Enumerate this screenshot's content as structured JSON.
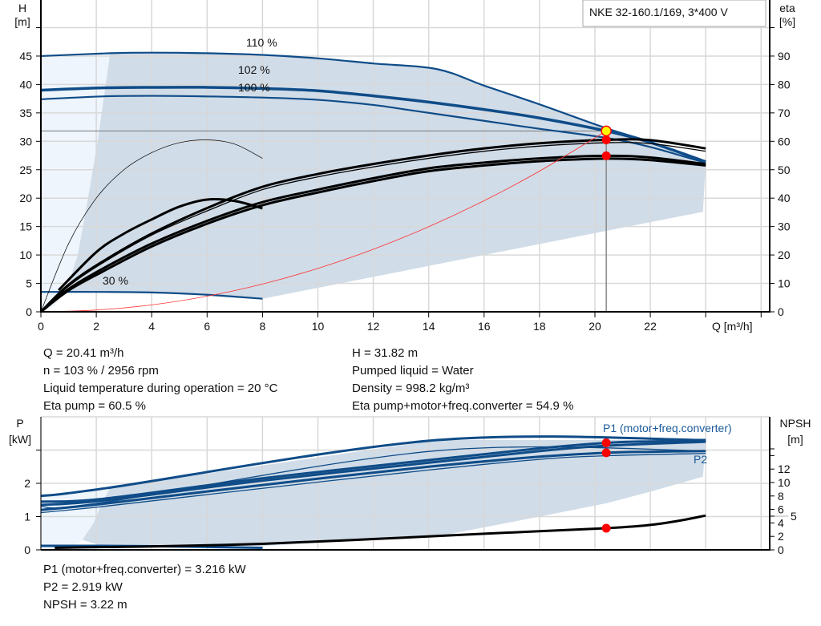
{
  "title_box": "NKE 32-160.1/169, 3*400 V",
  "info_top_left": [
    "Q = 20.41 m³/h",
    "n = 103 % / 2956 rpm",
    "Liquid temperature during operation = 20 °C",
    "Eta pump = 60.5 %"
  ],
  "info_top_right": [
    "H = 31.82 m",
    "Pumped liquid = Water",
    "Density = 998.2 kg/m³",
    "Eta pump+motor+freq.converter = 54.9 %"
  ],
  "info_bottom": [
    "P1 (motor+freq.converter) = 3.216 kW",
    "P2 = 2.919 kW",
    "NPSH = 3.22 m"
  ],
  "colors": {
    "curve_blue": "#0f4c88",
    "range_fill": "#d0dce8",
    "range_light": "#eef5fc",
    "point_red": "#ff0000",
    "point_yellow": "#ffff00"
  },
  "chart_data": [
    {
      "type": "line",
      "title": "",
      "xlabel": "Q [m³/h]",
      "ylabel": [
        "H",
        "[m]"
      ],
      "y2label": [
        "eta",
        "[%]"
      ],
      "xlim": [
        0,
        26
      ],
      "ylim": [
        0,
        50
      ],
      "y2lim": [
        0,
        100
      ],
      "x_ticks": [
        0,
        2,
        4,
        6,
        8,
        10,
        12,
        14,
        16,
        18,
        20,
        22
      ],
      "y_ticks": [
        0,
        5,
        10,
        15,
        20,
        25,
        30,
        35,
        40,
        45
      ],
      "y2_ticks": [
        0,
        10,
        20,
        30,
        40,
        50,
        60,
        70,
        80,
        90
      ],
      "grid": true,
      "head_curves": [
        {
          "name": "110 %",
          "points": [
            [
              0,
              45
            ],
            [
              2.5,
              45.5
            ],
            [
              4,
              45.6
            ],
            [
              6,
              45.5
            ],
            [
              8,
              45.2
            ],
            [
              10,
              44.6
            ],
            [
              12,
              43.7
            ],
            [
              14.3,
              42.7
            ],
            [
              16,
              39.8
            ],
            [
              18,
              36.5
            ],
            [
              20.41,
              32.3
            ],
            [
              22,
              29.9
            ],
            [
              24,
              26.4
            ]
          ]
        },
        {
          "name": "102 %",
          "points": [
            [
              0,
              39
            ],
            [
              2.2,
              39.4
            ],
            [
              4,
              39.5
            ],
            [
              6,
              39.5
            ],
            [
              8,
              39.3
            ],
            [
              10,
              38.9
            ],
            [
              12,
              38
            ],
            [
              14,
              36.9
            ],
            [
              16,
              35.6
            ],
            [
              18,
              34.1
            ],
            [
              20.41,
              31.82
            ],
            [
              22,
              29.8
            ],
            [
              24,
              26.4
            ]
          ]
        },
        {
          "name": "100 %",
          "points": [
            [
              0,
              37.4
            ],
            [
              2.2,
              37.9
            ],
            [
              4,
              38
            ],
            [
              6,
              37.9
            ],
            [
              8,
              37.7
            ],
            [
              10,
              37.3
            ],
            [
              12,
              36.4
            ],
            [
              13.3,
              35.5
            ],
            [
              16,
              33.6
            ],
            [
              18,
              32.2
            ],
            [
              20.41,
              30.6
            ],
            [
              22,
              29
            ],
            [
              24,
              26.2
            ]
          ]
        },
        {
          "name": "30 %",
          "points": [
            [
              0,
              3.5
            ],
            [
              2.2,
              3.5
            ],
            [
              4,
              3.4
            ],
            [
              6,
              3.0
            ],
            [
              8,
              2.3
            ]
          ]
        }
      ],
      "eta_curves": [
        {
          "points": [
            [
              0,
              0
            ],
            [
              1,
              9.5
            ],
            [
              2.2,
              17.5
            ],
            [
              4,
              27.5
            ],
            [
              6,
              36.5
            ],
            [
              8,
              44
            ],
            [
              10,
              48.5
            ],
            [
              12,
              52
            ],
            [
              14,
              55
            ],
            [
              16,
              57.5
            ],
            [
              18,
              59.3
            ],
            [
              20.41,
              60.5
            ],
            [
              22,
              60.4
            ],
            [
              24,
              57.5
            ]
          ],
          "weight": "thick"
        },
        {
          "points": [
            [
              0,
              0
            ],
            [
              1,
              9
            ],
            [
              2.2,
              17
            ],
            [
              4,
              27
            ],
            [
              6,
              35.5
            ],
            [
              8,
              43
            ],
            [
              10,
              47.5
            ],
            [
              12,
              51
            ],
            [
              14,
              54
            ],
            [
              16,
              56.5
            ],
            [
              18,
              58.3
            ],
            [
              20.41,
              59.5
            ],
            [
              22,
              59.2
            ],
            [
              24,
              56.5
            ]
          ],
          "weight": "thin"
        },
        {
          "points": [
            [
              0,
              0
            ],
            [
              1,
              8
            ],
            [
              2.2,
              15
            ],
            [
              4,
              24
            ],
            [
              6,
              32
            ],
            [
              8,
              38.6
            ],
            [
              10,
              43
            ],
            [
              12,
              47
            ],
            [
              14,
              50.5
            ],
            [
              16,
              52.5
            ],
            [
              18,
              54
            ],
            [
              20.41,
              54.9
            ],
            [
              22,
              54.3
            ],
            [
              24,
              52
            ]
          ],
          "weight": "thick"
        },
        {
          "points": [
            [
              0,
              0
            ],
            [
              1,
              7.5
            ],
            [
              2.2,
              14
            ],
            [
              4,
              23
            ],
            [
              6,
              31
            ],
            [
              8,
              37.5
            ],
            [
              10,
              42
            ],
            [
              12,
              46
            ],
            [
              14,
              49.5
            ],
            [
              16,
              51.5
            ],
            [
              18,
              53
            ],
            [
              20.41,
              53.9
            ],
            [
              22,
              53.4
            ],
            [
              24,
              51.5
            ]
          ],
          "weight": "thick"
        },
        {
          "points": [
            [
              0.64,
              7.6
            ],
            [
              2,
              21
            ],
            [
              3,
              27.5
            ],
            [
              4,
              32.5
            ],
            [
              5,
              37
            ],
            [
              6,
              39.5
            ],
            [
              7,
              39
            ],
            [
              8,
              36.4
            ]
          ],
          "weight": "thick"
        },
        {
          "points": [
            [
              0,
              0
            ],
            [
              1,
              24
            ],
            [
              2,
              40
            ],
            [
              3,
              50
            ],
            [
              4,
              56
            ],
            [
              5,
              59.5
            ],
            [
              6,
              60.5
            ],
            [
              7,
              59
            ],
            [
              8,
              54
            ]
          ],
          "weight": "hair"
        }
      ],
      "system_curve": [
        [
          0,
          0
        ],
        [
          2,
          0.31
        ],
        [
          4,
          1.22
        ],
        [
          6,
          2.75
        ],
        [
          8,
          4.89
        ],
        [
          10,
          7.64
        ],
        [
          12,
          11
        ],
        [
          14,
          14.97
        ],
        [
          16,
          19.55
        ],
        [
          18,
          24.75
        ],
        [
          20.41,
          31.82
        ]
      ],
      "operating_range": [
        [
          2.5,
          45.5
        ],
        [
          4,
          45.6
        ],
        [
          6,
          45.5
        ],
        [
          8,
          45.2
        ],
        [
          10,
          44.6
        ],
        [
          12,
          43.7
        ],
        [
          14.3,
          42.7
        ],
        [
          16,
          39.8
        ],
        [
          18,
          36.5
        ],
        [
          20.41,
          32.3
        ],
        [
          22,
          29.9
        ],
        [
          24,
          26.4
        ],
        [
          23.9,
          17.6
        ],
        [
          8,
          2.3
        ],
        [
          6,
          3.0
        ],
        [
          4,
          3.4
        ],
        [
          2.2,
          3.5
        ],
        [
          0.8,
          3.5
        ],
        [
          1.0,
          5
        ],
        [
          1.33,
          10
        ],
        [
          1.7,
          20
        ],
        [
          2.05,
          30
        ]
      ],
      "extended_range": [
        [
          0,
          45
        ],
        [
          2.5,
          45.5
        ],
        [
          2.05,
          30
        ],
        [
          1.7,
          20
        ],
        [
          1.33,
          10
        ],
        [
          1,
          5
        ],
        [
          0.5,
          1
        ],
        [
          0,
          0
        ]
      ],
      "duty_point": {
        "Q": 20.41,
        "H": 31.82,
        "eta_pump": 60.5,
        "eta_total": 54.9
      }
    },
    {
      "type": "line",
      "title": "",
      "ylabel": [
        "P",
        "[kW]"
      ],
      "y2label": [
        "NPSH",
        "[m]"
      ],
      "xlim": [
        0,
        26
      ],
      "ylim": [
        0,
        4
      ],
      "y2lim": [
        0,
        20
      ],
      "x_ticks": [
        0,
        2,
        4,
        6,
        8,
        10,
        12,
        14,
        16,
        18,
        20,
        22,
        24
      ],
      "y_ticks": [
        0,
        1,
        2,
        3
      ],
      "y_tick_labels": [
        "0",
        "1",
        "2",
        ""
      ],
      "y2_ticks": [
        0,
        2,
        4,
        5,
        6,
        8,
        10,
        12,
        14,
        15
      ],
      "y2_tick_labels": [
        "0",
        "2",
        "4",
        "5",
        "6",
        "8",
        "10",
        "12",
        "",
        ""
      ],
      "grid": true,
      "power_curves": [
        {
          "name": "P1 (motor+freq.converter)",
          "points": [
            [
              0,
              1.62
            ],
            [
              2.4,
              1.86
            ],
            [
              14.3,
              3.3
            ],
            [
              24,
              3.3
            ]
          ],
          "weight": "thick"
        },
        {
          "points": [
            [
              0,
              1.45
            ],
            [
              2.2,
              1.53
            ],
            [
              8,
              2.15
            ],
            [
              14,
              2.7
            ],
            [
              18,
              3.05
            ],
            [
              20.41,
              3.216
            ],
            [
              22,
              3.26
            ],
            [
              24,
              3.28
            ]
          ],
          "weight": "thick"
        },
        {
          "points": [
            [
              0,
              1.35
            ],
            [
              2.2,
              1.48
            ],
            [
              8,
              2.08
            ],
            [
              14,
              2.62
            ],
            [
              18,
              2.97
            ],
            [
              20.41,
              3.13
            ],
            [
              24,
              3.25
            ]
          ],
          "weight": "thick"
        },
        {
          "points": [
            [
              0,
              1.3
            ],
            [
              2.2,
              1.42
            ],
            [
              14.3,
              2.98
            ],
            [
              24,
              2.98
            ]
          ],
          "weight": "thin"
        },
        {
          "name": "P2",
          "points": [
            [
              0,
              1.2
            ],
            [
              2.2,
              1.38
            ],
            [
              8,
              1.95
            ],
            [
              14,
              2.5
            ],
            [
              18,
              2.8
            ],
            [
              20.41,
              2.919
            ],
            [
              22,
              2.95
            ],
            [
              24,
              2.97
            ]
          ],
          "weight": "thick"
        },
        {
          "points": [
            [
              0,
              1.12
            ],
            [
              2.2,
              1.3
            ],
            [
              8,
              1.85
            ],
            [
              14,
              2.4
            ],
            [
              18,
              2.72
            ],
            [
              20.41,
              2.83
            ],
            [
              24,
              2.9
            ]
          ],
          "weight": "thin"
        },
        {
          "points": [
            [
              0,
              0.12
            ],
            [
              2.2,
              0.12
            ],
            [
              5,
              0.1
            ],
            [
              8,
              0.06
            ]
          ],
          "weight": "thick"
        }
      ],
      "npsh_curve": [
        [
          0.5,
          0.3
        ],
        [
          2,
          0.4
        ],
        [
          4,
          0.5
        ],
        [
          8,
          0.9
        ],
        [
          12,
          1.6
        ],
        [
          16,
          2.4
        ],
        [
          20.41,
          3.22
        ],
        [
          22,
          3.7
        ],
        [
          23,
          4.3
        ],
        [
          24,
          5.1
        ]
      ],
      "operating_range": [
        [
          2.5,
          1.87
        ],
        [
          14.3,
          3.3
        ],
        [
          24,
          3.3
        ],
        [
          23.9,
          2.2
        ],
        [
          22,
          1.75
        ],
        [
          20.41,
          1.4
        ],
        [
          18,
          1.0
        ],
        [
          14.3,
          0.4
        ],
        [
          8,
          0.12
        ],
        [
          2.2,
          0.12
        ],
        [
          1.5,
          0.3
        ],
        [
          1.9,
          0.8
        ],
        [
          2.2,
          1.4
        ]
      ],
      "extended_range": [
        [
          0,
          1.62
        ],
        [
          2.5,
          1.87
        ],
        [
          2.2,
          1.4
        ],
        [
          1.9,
          0.8
        ],
        [
          1.5,
          0.3
        ],
        [
          1.2,
          0.1
        ],
        [
          0,
          0.05
        ]
      ],
      "duty_point": {
        "P1": 3.216,
        "P2": 2.919,
        "NPSH": 3.22
      }
    }
  ]
}
